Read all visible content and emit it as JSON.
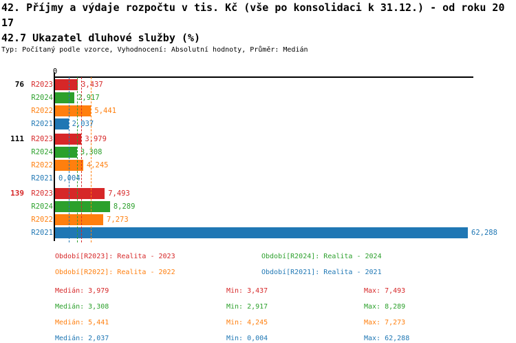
{
  "header": {
    "title_line1": "42. Příjmy a výdaje rozpočtu v tis. Kč (vše po konsolidaci k 31.12.) - od roku 20",
    "title_line2": "17",
    "subtitle": "42.7 Ukazatel dluhové služby (%)",
    "meta": "Typ: Počítaný podle vzorce, Vyhodnocení: Absolutní hodnoty, Průměr: Medián"
  },
  "colors": {
    "R2023": "#d62728",
    "R2024": "#2ca02c",
    "R2022": "#ff7f0e",
    "R2021": "#1f77b4",
    "axis": "#000000",
    "group_label_default": "#000000",
    "group_label_highlight": "#d62728"
  },
  "chart_data": {
    "type": "bar",
    "orientation": "horizontal",
    "zero_tick_label": "0",
    "x_min": 0,
    "x_max": 62.288,
    "series_order": [
      "R2023",
      "R2024",
      "R2022",
      "R2021"
    ],
    "groups": [
      {
        "label": "76",
        "label_color": "#000000",
        "bars": [
          {
            "series": "R2023",
            "value": 3.437,
            "display": "3,437"
          },
          {
            "series": "R2024",
            "value": 2.917,
            "display": "2,917"
          },
          {
            "series": "R2022",
            "value": 5.441,
            "display": "5,441"
          },
          {
            "series": "R2021",
            "value": 2.037,
            "display": "2,037"
          }
        ]
      },
      {
        "label": "111",
        "label_color": "#000000",
        "bars": [
          {
            "series": "R2023",
            "value": 3.979,
            "display": "3,979"
          },
          {
            "series": "R2024",
            "value": 3.308,
            "display": "3,308"
          },
          {
            "series": "R2022",
            "value": 4.245,
            "display": "4,245"
          },
          {
            "series": "R2021",
            "value": 0.004,
            "display": "0,004"
          }
        ]
      },
      {
        "label": "139",
        "label_color": "#d62728",
        "bars": [
          {
            "series": "R2023",
            "value": 7.493,
            "display": "7,493"
          },
          {
            "series": "R2024",
            "value": 8.289,
            "display": "8,289"
          },
          {
            "series": "R2022",
            "value": 7.273,
            "display": "7,273"
          },
          {
            "series": "R2021",
            "value": 62.288,
            "display": "62,288"
          }
        ]
      }
    ],
    "median_lines": [
      {
        "series": "R2023",
        "value": 3.979
      },
      {
        "series": "R2024",
        "value": 3.308
      },
      {
        "series": "R2022",
        "value": 5.441
      },
      {
        "series": "R2021",
        "value": 2.037
      }
    ]
  },
  "legend": [
    {
      "series": "R2023",
      "label": "Období[R2023]: Realita - 2023"
    },
    {
      "series": "R2024",
      "label": "Období[R2024]: Realita - 2024"
    },
    {
      "series": "R2022",
      "label": "Období[R2022]: Realita - 2022"
    },
    {
      "series": "R2021",
      "label": "Období[R2021]: Realita - 2021"
    }
  ],
  "stat_labels": {
    "median": "Medián",
    "min": "Min",
    "max": "Max"
  },
  "stats": [
    {
      "series": "R2023",
      "median": "3,979",
      "min": "3,437",
      "max": "7,493"
    },
    {
      "series": "R2024",
      "median": "3,308",
      "min": "2,917",
      "max": "8,289"
    },
    {
      "series": "R2022",
      "median": "5,441",
      "min": "4,245",
      "max": "7,273"
    },
    {
      "series": "R2021",
      "median": "2,037",
      "min": "0,004",
      "max": "62,288"
    }
  ]
}
